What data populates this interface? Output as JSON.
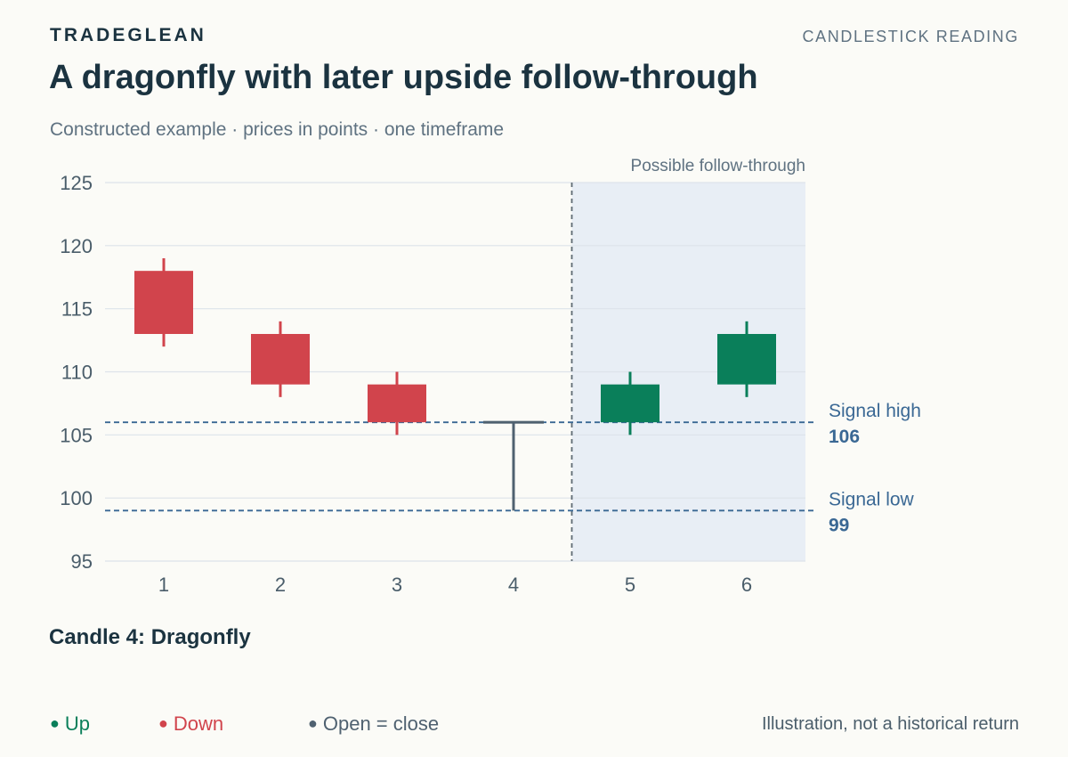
{
  "header": {
    "brand": "TRADEGLEAN",
    "section": "CANDLESTICK READING",
    "title": "A dragonfly with later upside follow-through",
    "subtitle": "Constructed example · prices in points · one timeframe"
  },
  "chart_data": {
    "type": "candlestick",
    "ylim": [
      95,
      125
    ],
    "yticks": [
      95,
      100,
      105,
      110,
      115,
      120,
      125
    ],
    "grid": true,
    "categories": [
      "1",
      "2",
      "3",
      "4",
      "5",
      "6"
    ],
    "candles": [
      {
        "x": "1",
        "open": 118,
        "high": 119,
        "low": 112,
        "close": 113,
        "direction": "down"
      },
      {
        "x": "2",
        "open": 113,
        "high": 114,
        "low": 108,
        "close": 109,
        "direction": "down"
      },
      {
        "x": "3",
        "open": 109,
        "high": 110,
        "low": 105,
        "close": 106,
        "direction": "down"
      },
      {
        "x": "4",
        "open": 106,
        "high": 106,
        "low": 99,
        "close": 106,
        "direction": "flat"
      },
      {
        "x": "5",
        "open": 106,
        "high": 110,
        "low": 105,
        "close": 109,
        "direction": "up"
      },
      {
        "x": "6",
        "open": 109,
        "high": 114,
        "low": 108,
        "close": 113,
        "direction": "up"
      }
    ],
    "shaded_region": {
      "from": "5",
      "to": "6",
      "label": "Possible follow-through"
    },
    "reference_lines": [
      {
        "label": "Signal high",
        "value": 106,
        "value_label": "106"
      },
      {
        "label": "Signal low",
        "value": 99,
        "value_label": "99"
      }
    ]
  },
  "callout": "Candle 4: Dragonfly",
  "legend": [
    {
      "label": "Up",
      "color": "#0a7f5a"
    },
    {
      "label": "Down",
      "color": "#d1444c"
    },
    {
      "label": "Open = close",
      "color": "#4f6170"
    }
  ],
  "footnote": "Illustration, not a historical return",
  "colors": {
    "up": "#0a7f5a",
    "down": "#d1444c",
    "flat": "#4f6170",
    "reference": "#3a6894",
    "shade": "#e8eef5"
  }
}
